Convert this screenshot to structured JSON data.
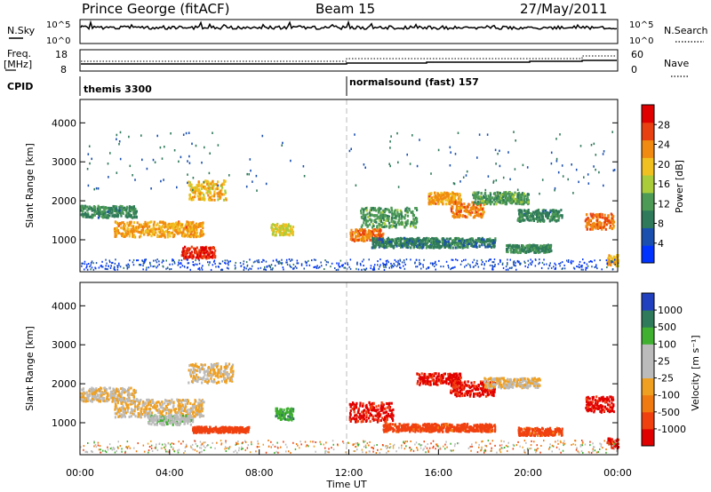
{
  "header": {
    "radar": "Prince George (fitACF)",
    "beam": "Beam 15",
    "date": "27/May/2011"
  },
  "top_panels": {
    "nsky_label": "N.Sky",
    "nsky_ticks": [
      "10^5",
      "10^0"
    ],
    "nsearch_label": "N.Search",
    "freq_label": "Freq.",
    "freq_unit": "[MHz]",
    "freq_ticks": [
      "18",
      "8"
    ],
    "nave_ticks": [
      "60",
      "0"
    ],
    "nave_label": "Nave",
    "cpid_label": "CPID",
    "cpid_segments": [
      {
        "name": "themis 3300",
        "start_hour": 0
      },
      {
        "name": "normalsound (fast) 157",
        "start_hour": 12
      }
    ]
  },
  "colors": {
    "power_scale": [
      "#0033ff",
      "#1a4fb0",
      "#2f7a5a",
      "#4c9a55",
      "#aacb3a",
      "#f0c020",
      "#f08a10",
      "#e84010",
      "#e00000"
    ],
    "velocity_scale": [
      "#e00000",
      "#f04010",
      "#f07a10",
      "#f0a020",
      "#bbbbbb",
      "#bbbbbb",
      "#40b030",
      "#2f7a5a",
      "#2040c0"
    ]
  },
  "chart_data": [
    {
      "type": "heatmap",
      "panel": "power",
      "ylabel": "Slant Range [km]",
      "ylim": [
        180,
        4600
      ],
      "yticks": [
        "1000",
        "2000",
        "3000",
        "4000"
      ],
      "x_range_hours": [
        0,
        24
      ],
      "colorbar": {
        "label": "Power [dB]",
        "range": [
          0,
          32
        ],
        "ticks": [
          "4",
          "8",
          "12",
          "16",
          "20",
          "24",
          "28"
        ]
      },
      "echo_regions": [
        {
          "t_start": 0.0,
          "t_end": 2.5,
          "r_center": 1750,
          "r_width": 300,
          "value": 10
        },
        {
          "t_start": 1.5,
          "t_end": 5.5,
          "r_center": 1300,
          "r_width": 400,
          "value": 22
        },
        {
          "t_start": 4.5,
          "t_end": 6.0,
          "r_center": 700,
          "r_width": 300,
          "value": 28
        },
        {
          "t_start": 4.8,
          "t_end": 6.5,
          "r_center": 2300,
          "r_width": 500,
          "value": 20
        },
        {
          "t_start": 8.5,
          "t_end": 9.5,
          "r_center": 1300,
          "r_width": 300,
          "value": 18
        },
        {
          "t_start": 12.0,
          "t_end": 13.5,
          "r_center": 1150,
          "r_width": 300,
          "value": 24
        },
        {
          "t_start": 12.5,
          "t_end": 15.0,
          "r_center": 1600,
          "r_width": 500,
          "value": 12
        },
        {
          "t_start": 13.0,
          "t_end": 18.5,
          "r_center": 950,
          "r_width": 250,
          "value": 9
        },
        {
          "t_start": 15.5,
          "t_end": 17.0,
          "r_center": 2100,
          "r_width": 300,
          "value": 22
        },
        {
          "t_start": 16.5,
          "t_end": 18.0,
          "r_center": 1800,
          "r_width": 400,
          "value": 24
        },
        {
          "t_start": 17.5,
          "t_end": 20.0,
          "r_center": 2100,
          "r_width": 300,
          "value": 12
        },
        {
          "t_start": 19.5,
          "t_end": 21.5,
          "r_center": 1650,
          "r_width": 300,
          "value": 10
        },
        {
          "t_start": 19.0,
          "t_end": 21.0,
          "r_center": 800,
          "r_width": 200,
          "value": 10
        },
        {
          "t_start": 22.5,
          "t_end": 23.8,
          "r_center": 1500,
          "r_width": 400,
          "value": 24
        },
        {
          "t_start": 23.5,
          "t_end": 24.0,
          "r_center": 500,
          "r_width": 300,
          "value": 20
        }
      ]
    },
    {
      "type": "heatmap",
      "panel": "velocity",
      "ylabel": "Slant Range [km]",
      "ylim": [
        180,
        4600
      ],
      "yticks": [
        "1000",
        "2000",
        "3000",
        "4000"
      ],
      "x_range_hours": [
        0,
        24
      ],
      "xticks": [
        "00:00",
        "04:00",
        "08:00",
        "12:00",
        "16:00",
        "20:00",
        "00:00"
      ],
      "xlabel": "Time UT",
      "colorbar": {
        "label": "Velocity [m s⁻¹]",
        "ticks": [
          "1000",
          "500",
          "100",
          "25",
          "-25",
          "-100",
          "-500",
          "-1000"
        ]
      },
      "echo_regions": [
        {
          "t_start": 0.0,
          "t_end": 2.5,
          "r_center": 1750,
          "r_width": 350,
          "value": 0
        },
        {
          "t_start": 1.5,
          "t_end": 5.5,
          "r_center": 1400,
          "r_width": 450,
          "value": 0
        },
        {
          "t_start": 4.8,
          "t_end": 6.8,
          "r_center": 2300,
          "r_width": 500,
          "value": 0
        },
        {
          "t_start": 3.0,
          "t_end": 5.0,
          "r_center": 1100,
          "r_width": 250,
          "value": 80
        },
        {
          "t_start": 5.0,
          "t_end": 7.5,
          "r_center": 850,
          "r_width": 150,
          "value": -200
        },
        {
          "t_start": 8.7,
          "t_end": 9.5,
          "r_center": 1250,
          "r_width": 300,
          "value": 400
        },
        {
          "t_start": 12.0,
          "t_end": 14.0,
          "r_center": 1300,
          "r_width": 500,
          "value": -600
        },
        {
          "t_start": 13.5,
          "t_end": 18.5,
          "r_center": 900,
          "r_width": 200,
          "value": -150
        },
        {
          "t_start": 15.0,
          "t_end": 17.0,
          "r_center": 2150,
          "r_width": 300,
          "value": -600
        },
        {
          "t_start": 16.5,
          "t_end": 18.5,
          "r_center": 1900,
          "r_width": 400,
          "value": -600
        },
        {
          "t_start": 18.0,
          "t_end": 20.5,
          "r_center": 2050,
          "r_width": 250,
          "value": 0
        },
        {
          "t_start": 19.5,
          "t_end": 21.5,
          "r_center": 800,
          "r_width": 200,
          "value": -150
        },
        {
          "t_start": 22.5,
          "t_end": 23.8,
          "r_center": 1500,
          "r_width": 400,
          "value": -600
        },
        {
          "t_start": 23.5,
          "t_end": 24.0,
          "r_center": 500,
          "r_width": 250,
          "value": -600
        }
      ]
    }
  ]
}
